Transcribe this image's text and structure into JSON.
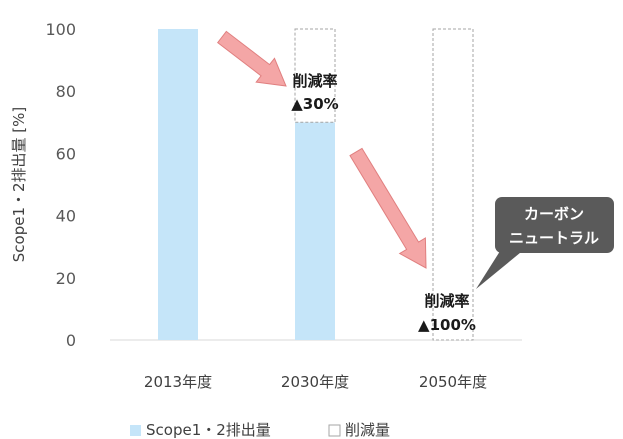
{
  "chart_data": {
    "type": "bar",
    "categories": [
      "2013年度",
      "2030年度",
      "2050年度"
    ],
    "series": [
      {
        "name": "Scope1・2排出量",
        "values": [
          100,
          70,
          0
        ],
        "color": "#c5e5f9"
      },
      {
        "name": "削減量",
        "values": [
          0,
          30,
          100
        ],
        "color": "#ffffff",
        "border": "#a6a6a6"
      }
    ],
    "stacked": true,
    "ylabel": "Scope1・2排出量 [%]",
    "ylim": [
      0,
      100
    ],
    "yticks": [
      0,
      20,
      40,
      60,
      80,
      100
    ],
    "grid": false,
    "legend_position": "bottom",
    "annotations": {
      "a2030_line1": "削減率",
      "a2030_line2": "▲30%",
      "a2050_line1": "削減率",
      "a2050_line2": "▲100%",
      "callout_line1": "カーボン",
      "callout_line2": "ニュートラル"
    },
    "arrow_color": "#f4a6a6",
    "callout_color": "#5a5a5a"
  }
}
